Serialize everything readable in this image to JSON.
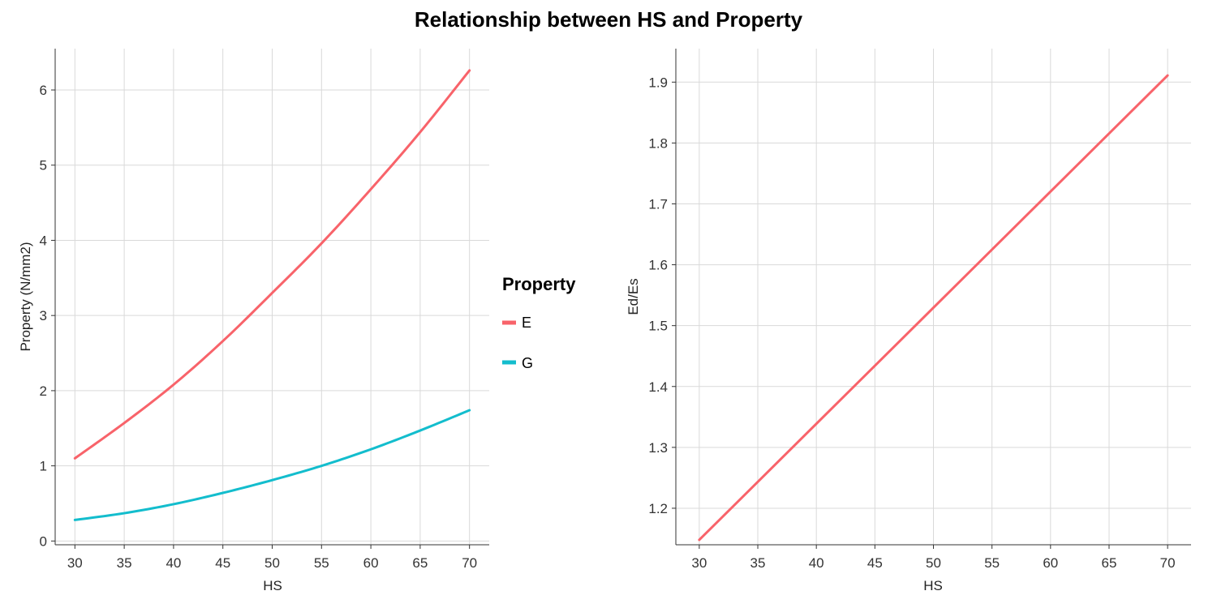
{
  "title": "Relationship between HS and Property",
  "colors": {
    "E": "#F8636A",
    "G": "#13BDCD"
  },
  "chart_data": [
    {
      "type": "line",
      "title": "",
      "xlabel": "HS",
      "ylabel": "Property (N/mm2)",
      "xlim": [
        28,
        72
      ],
      "ylim": [
        -0.05,
        6.55
      ],
      "xticks": [
        30,
        35,
        40,
        45,
        50,
        55,
        60,
        65,
        70
      ],
      "yticks": [
        0,
        1,
        2,
        3,
        4,
        5,
        6
      ],
      "grid": true,
      "legend": {
        "title": "Property",
        "placement": "right"
      },
      "series": [
        {
          "name": "E",
          "x": [
            30,
            35,
            40,
            45,
            50,
            55,
            60,
            65,
            70
          ],
          "y": [
            1.1,
            1.57,
            2.08,
            2.66,
            3.3,
            3.96,
            4.68,
            5.44,
            6.26
          ]
        },
        {
          "name": "G",
          "x": [
            30,
            35,
            40,
            45,
            50,
            55,
            60,
            65,
            70
          ],
          "y": [
            0.28,
            0.37,
            0.49,
            0.64,
            0.81,
            1.0,
            1.22,
            1.47,
            1.74
          ]
        }
      ]
    },
    {
      "type": "line",
      "title": "",
      "xlabel": "HS",
      "ylabel": "Ed/Es",
      "xlim": [
        28,
        72
      ],
      "ylim": [
        1.14,
        1.955
      ],
      "xticks": [
        30,
        35,
        40,
        45,
        50,
        55,
        60,
        65,
        70
      ],
      "yticks": [
        1.2,
        1.3,
        1.4,
        1.5,
        1.6,
        1.7,
        1.8,
        1.9
      ],
      "grid": true,
      "series": [
        {
          "name": "",
          "x": [
            30,
            70
          ],
          "y": [
            1.148,
            1.911
          ]
        }
      ]
    }
  ]
}
